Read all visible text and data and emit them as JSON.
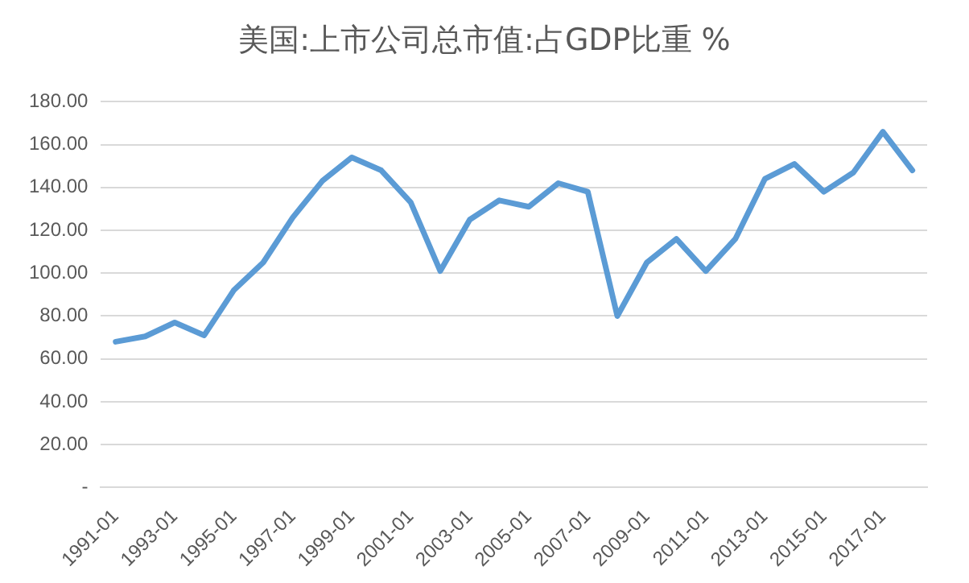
{
  "chart_data": {
    "type": "line",
    "title": "美国:上市公司总市值:占GDP比重 %",
    "categories": [
      "1991-01",
      null,
      "1993-01",
      null,
      "1995-01",
      null,
      "1997-01",
      null,
      "1999-01",
      null,
      "2001-01",
      null,
      "2003-01",
      null,
      "2005-01",
      null,
      "2007-01",
      null,
      "2009-01",
      null,
      "2011-01",
      null,
      "2013-01",
      null,
      "2015-01",
      null,
      "2017-01",
      null
    ],
    "series": [
      {
        "color": "#5b9bd5",
        "values": [
          68,
          70.5,
          77,
          71,
          92,
          105,
          126,
          143,
          154,
          148,
          133,
          101,
          125,
          134,
          131,
          142,
          138,
          80,
          105,
          116,
          101,
          116,
          144,
          151,
          138,
          147,
          166,
          148
        ]
      }
    ],
    "ylim": [
      0,
      180
    ],
    "yticks": [
      {
        "value": 0,
        "label": "-"
      },
      {
        "value": 20,
        "label": "20.00"
      },
      {
        "value": 40,
        "label": "40.00"
      },
      {
        "value": 60,
        "label": "60.00"
      },
      {
        "value": 80,
        "label": "80.00"
      },
      {
        "value": 100,
        "label": "100.00"
      },
      {
        "value": 120,
        "label": "120.00"
      },
      {
        "value": 140,
        "label": "140.00"
      },
      {
        "value": 160,
        "label": "160.00"
      },
      {
        "value": 180,
        "label": "180.00"
      }
    ],
    "grid": "y",
    "legend": false,
    "marker": "none",
    "line_style": "solid"
  }
}
